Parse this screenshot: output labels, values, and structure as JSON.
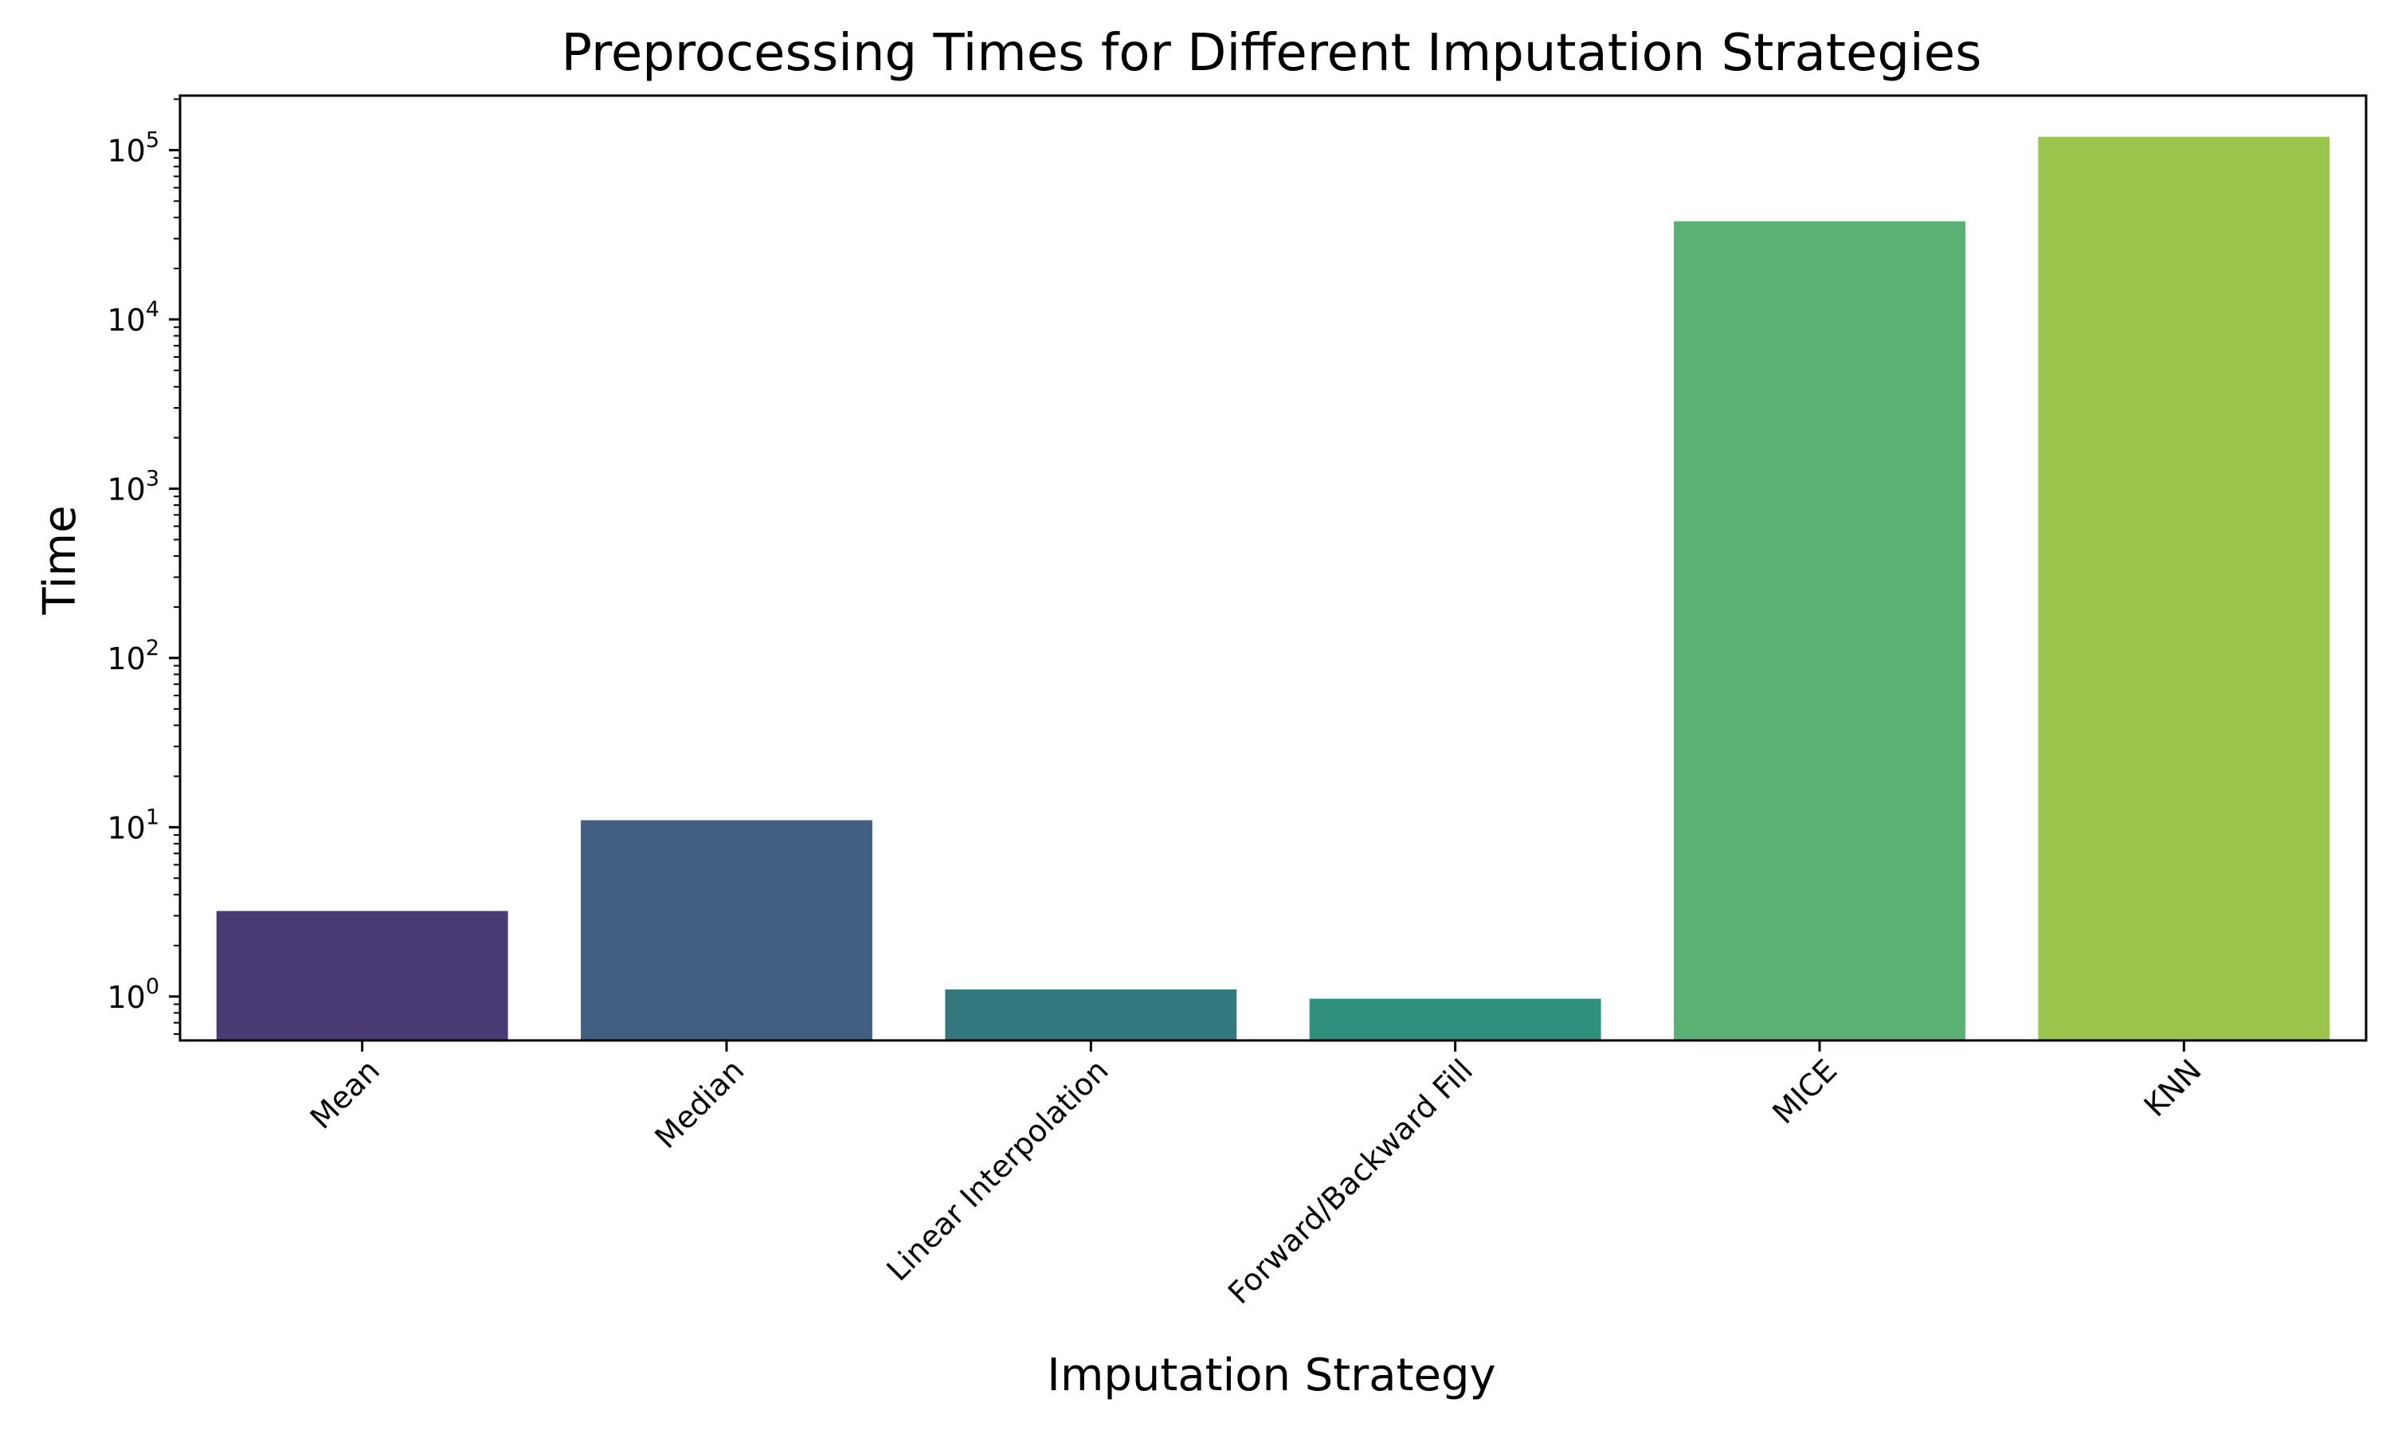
{
  "chart_data": {
    "type": "bar",
    "title": "Preprocessing Times for Different Imputation Strategies",
    "xlabel": "Imputation Strategy",
    "ylabel": "Time",
    "yscale": "log",
    "ylim": [
      0.55,
      210000
    ],
    "yticks": [
      1,
      10,
      100,
      1000,
      10000,
      100000
    ],
    "ytick_labels": [
      {
        "base": "10",
        "exp": "0"
      },
      {
        "base": "10",
        "exp": "1"
      },
      {
        "base": "10",
        "exp": "2"
      },
      {
        "base": "10",
        "exp": "3"
      },
      {
        "base": "10",
        "exp": "4"
      },
      {
        "base": "10",
        "exp": "5"
      }
    ],
    "categories": [
      "Mean",
      "Median",
      "Linear Interpolation",
      "Forward/Backward Fill",
      "MICE",
      "KNN"
    ],
    "values": [
      3.2,
      11.0,
      1.1,
      0.97,
      38000,
      120000
    ],
    "colors": [
      "#4a3a74",
      "#415f83",
      "#34787f",
      "#2f907d",
      "#5ab174",
      "#9ac54d"
    ],
    "grid": false,
    "legend": "none"
  }
}
